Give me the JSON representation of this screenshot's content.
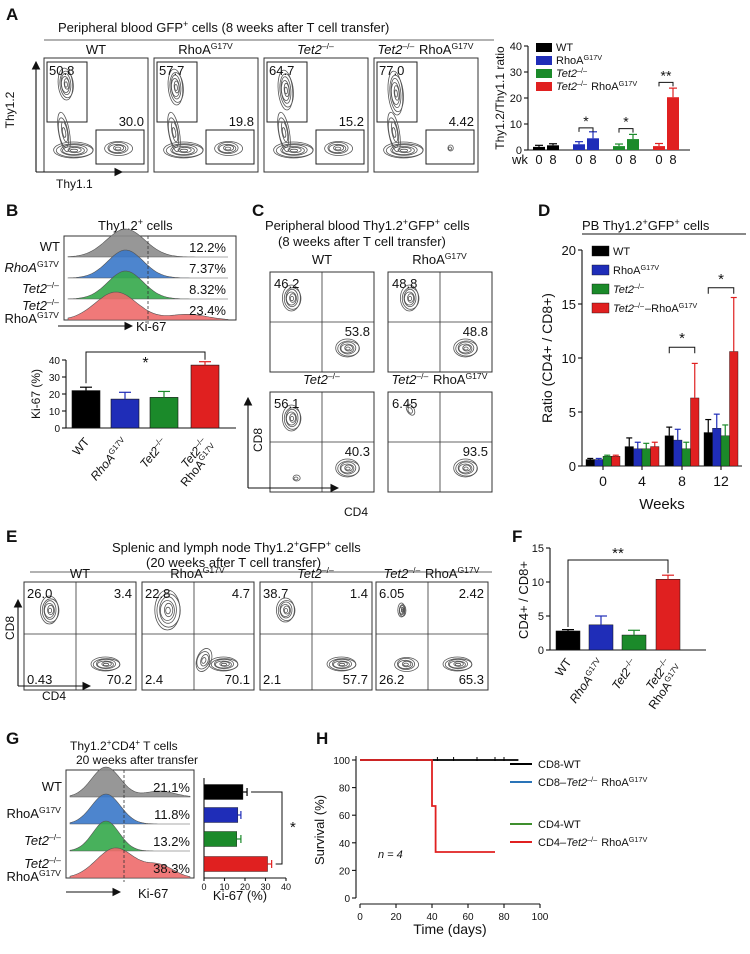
{
  "panelA": {
    "letter": "A",
    "title_pre": "Peripheral blood GFP",
    "title_sup": "+",
    "title_post": " cells (8 weeks after T cell transfer)",
    "groups": [
      {
        "pre": "WT",
        "sup": "",
        "post": "",
        "italic": false
      },
      {
        "pre": "RhoA",
        "sup": "G17V",
        "post": "",
        "italic": false
      },
      {
        "pre": "Tet2",
        "sup": "–/–",
        "post": "",
        "italic": true
      },
      {
        "pre": "Tet2",
        "sup": "–/–",
        "post": " RhoA",
        "sup2": "G17V",
        "italic": true
      }
    ],
    "flow_values": [
      [
        "50.8",
        "30.0"
      ],
      [
        "57.7",
        "19.8"
      ],
      [
        "64.7",
        "15.2"
      ],
      [
        "77.0",
        "4.42"
      ]
    ],
    "yaxis": "Thy1.2",
    "xaxis": "Thy1.1",
    "bar": {
      "ylabel": "Thy1.2/Thy1.1 ratio",
      "yticks": [
        "0",
        "10",
        "20",
        "30",
        "40"
      ],
      "ylim": [
        0,
        40
      ],
      "wk_label": "wk",
      "xticks": [
        "0",
        "8",
        "0",
        "8",
        "0",
        "8",
        "0",
        "8"
      ],
      "legend": [
        {
          "pre": "WT",
          "sup": "",
          "post": "",
          "italic": false,
          "color": "#000000"
        },
        {
          "pre": "RhoA",
          "sup": "G17V",
          "post": "",
          "italic": false,
          "color": "#1f2db8"
        },
        {
          "pre": "Tet2",
          "sup": "–/–",
          "post": "",
          "italic": true,
          "color": "#1b8a2a"
        },
        {
          "pre": "Tet2",
          "sup": "–/–",
          "post": " RhoA",
          "sup2": "G17V",
          "italic": true,
          "color": "#e02020"
        }
      ],
      "values": [
        1.2,
        1.8,
        2.2,
        4.5,
        1.5,
        4.2,
        1.5,
        20.3
      ],
      "errors": [
        0.6,
        0.6,
        1.0,
        2.5,
        0.8,
        1.8,
        1.0,
        3.5
      ],
      "stars": [
        "*",
        "*",
        "**"
      ]
    }
  },
  "panelB": {
    "letter": "B",
    "title_pre": "Thy1.2",
    "title_sup": "+",
    "title_post": " cells",
    "rows": [
      {
        "pre": "WT",
        "sup": "",
        "italic": false,
        "value": "12.2%",
        "color": "#8c8c8c"
      },
      {
        "pre": "RhoA",
        "sup": "G17V",
        "italic": true,
        "value": "7.37%",
        "color": "#3a78c9"
      },
      {
        "pre": "Tet2",
        "sup": "–/–",
        "italic": true,
        "value": "8.32%",
        "color": "#34a84a"
      },
      {
        "pre": "Tet2",
        "sup": "–/–",
        "line2": "RhoA",
        "sup2": "G17V",
        "italic": true,
        "value": "23.4%",
        "color": "#ee6a6a"
      }
    ],
    "xaxis": "Ki-67",
    "bar": {
      "ylabel": "Ki-67 (%)",
      "yticks": [
        "0",
        "10",
        "20",
        "30",
        "40"
      ],
      "ylim": [
        0,
        40
      ],
      "values": [
        22,
        17,
        18,
        37
      ],
      "errors": [
        2,
        4,
        3.5,
        2
      ],
      "colors": [
        "#000000",
        "#1f2db8",
        "#1b8a2a",
        "#e02020"
      ],
      "xlabels": [
        {
          "pre": "WT",
          "sup": "",
          "italic": false
        },
        {
          "pre": "RhoA",
          "sup": "G17V",
          "italic": true
        },
        {
          "pre": "Tet2",
          "sup": "–/–",
          "italic": true
        },
        {
          "pre": "Tet2",
          "sup": "–/–",
          "line2": "RhoA",
          "sup2": "G17V",
          "italic": true
        }
      ],
      "star": "*"
    }
  },
  "panelC": {
    "letter": "C",
    "title1_pre": "Peripheral blood Thy1.2",
    "title1_sup": "+",
    "title1_mid": "GFP",
    "title1_sup2": "+",
    "title1_post": " cells",
    "title2": "(8 weeks after T cell transfer)",
    "groups": [
      {
        "pre": "WT",
        "sup": "",
        "italic": false
      },
      {
        "pre": "RhoA",
        "sup": "G17V",
        "italic": false
      },
      {
        "pre": "Tet2",
        "sup": "–/–",
        "italic": true
      },
      {
        "pre": "Tet2",
        "sup": "–/–",
        "post": " RhoA",
        "sup2": "G17V",
        "italic": true
      }
    ],
    "values": [
      [
        "46.2",
        "53.8"
      ],
      [
        "48.8",
        "48.8"
      ],
      [
        "56.1",
        "40.3"
      ],
      [
        "6.45",
        "93.5"
      ]
    ],
    "yaxis": "CD8",
    "xaxis": "CD4"
  },
  "panelD": {
    "letter": "D",
    "title_pre": "PB Thy1.2",
    "title_sup": "+",
    "title_mid": "GFP",
    "title_sup2": "+",
    "title_post": " cells",
    "ylabel": "Ratio (CD4+ / CD8+)",
    "xlabel": "Weeks",
    "yticks": [
      "0",
      "5",
      "10",
      "15",
      "20"
    ],
    "ylim": [
      0,
      20
    ],
    "categories": [
      "0",
      "4",
      "8",
      "12"
    ],
    "legend": [
      {
        "pre": "WT",
        "sup": "",
        "post": "",
        "italic": false,
        "color": "#000000"
      },
      {
        "pre": "RhoA",
        "sup": "G17V",
        "post": "",
        "italic": false,
        "color": "#1f2db8"
      },
      {
        "pre": "Tet2",
        "sup": "–/–",
        "post": "",
        "italic": true,
        "color": "#1b8a2a"
      },
      {
        "pre": "Tet2",
        "sup": "–/–",
        "post": "–RhoA",
        "sup2": "G17V",
        "italic": true,
        "color": "#e02020"
      }
    ],
    "series": [
      {
        "values": [
          0.6,
          1.8,
          2.8,
          3.1
        ],
        "errors": [
          0.1,
          0.8,
          0.8,
          1.2
        ]
      },
      {
        "values": [
          0.6,
          1.6,
          2.4,
          3.5
        ],
        "errors": [
          0.1,
          0.6,
          1.0,
          1.3
        ]
      },
      {
        "values": [
          0.9,
          1.6,
          1.6,
          2.8
        ],
        "errors": [
          0.1,
          0.5,
          0.6,
          1.0
        ]
      },
      {
        "values": [
          0.9,
          1.8,
          6.3,
          10.6
        ],
        "errors": [
          0.1,
          0.4,
          3.2,
          5.0
        ]
      }
    ],
    "stars": [
      "*",
      "*"
    ]
  },
  "panelE": {
    "letter": "E",
    "title1_pre": "Splenic and lymph node Thy1.2",
    "title1_sup": "+",
    "title1_mid": "GFP",
    "title1_sup2": "+",
    "title1_post": " cells",
    "title2": "(20 weeks after T cell transfer)",
    "groups": [
      {
        "pre": "WT",
        "sup": "",
        "italic": false
      },
      {
        "pre": "RhoA",
        "sup": "G17V",
        "italic": false
      },
      {
        "pre": "Tet2",
        "sup": "–/–",
        "italic": true
      },
      {
        "pre": "Tet2",
        "sup": "–/–",
        "post": " RhoA",
        "sup2": "G17V",
        "italic": true
      }
    ],
    "values": [
      [
        "26.0",
        "3.4",
        "0.43",
        "70.2"
      ],
      [
        "22.8",
        "4.7",
        "2.4",
        "70.1"
      ],
      [
        "38.7",
        "1.4",
        "2.1",
        "57.7"
      ],
      [
        "6.05",
        "2.42",
        "26.2",
        "65.3"
      ]
    ],
    "yaxis": "CD8",
    "xaxis": "CD4"
  },
  "panelF": {
    "letter": "F",
    "ylabel": "CD4+ / CD8+",
    "yticks": [
      "0",
      "5",
      "10",
      "15"
    ],
    "ylim": [
      0,
      15
    ],
    "values": [
      2.8,
      3.7,
      2.2,
      10.4
    ],
    "errors": [
      0.2,
      1.3,
      0.7,
      0.6
    ],
    "colors": [
      "#000000",
      "#1f2db8",
      "#1b8a2a",
      "#e02020"
    ],
    "xlabels": [
      {
        "pre": "WT",
        "sup": "",
        "italic": false
      },
      {
        "pre": "RhoA",
        "sup": "G17V",
        "italic": true
      },
      {
        "pre": "Tet2",
        "sup": "–/–",
        "italic": true
      },
      {
        "pre": "Tet2",
        "sup": "–/–",
        "line2": "RhoA",
        "sup2": "G17V",
        "italic": true
      }
    ],
    "star": "**"
  },
  "panelG": {
    "letter": "G",
    "title1_pre": "Thy1.2",
    "title1_sup": "+",
    "title1_mid": "CD4",
    "title1_sup2": "+",
    "title1_post": " T cells",
    "title2": "20 weeks after transfer",
    "rows": [
      {
        "pre": "WT",
        "sup": "",
        "italic": false,
        "value": "21.1%",
        "color": "#8c8c8c"
      },
      {
        "pre": "RhoA",
        "sup": "G17V",
        "italic": false,
        "value": "11.8%",
        "color": "#3a78c9"
      },
      {
        "pre": "Tet2",
        "sup": "–/–",
        "italic": true,
        "value": "13.2%",
        "color": "#34a84a"
      },
      {
        "pre": "Tet2",
        "sup": "–/–",
        "line2": "RhoA",
        "sup2": "G17V",
        "italic": true,
        "value": "38.3%",
        "color": "#ee6a6a"
      }
    ],
    "xaxis": "Ki-67",
    "bar": {
      "xlabel": "Ki-67 (%)",
      "xticks": [
        "0",
        "10",
        "20",
        "30",
        "40"
      ],
      "xlim": [
        0,
        40
      ],
      "values": [
        19,
        16.5,
        16,
        31
      ],
      "errors": [
        2,
        1.5,
        2,
        2
      ],
      "colors": [
        "#000000",
        "#1f2db8",
        "#1b8a2a",
        "#e02020"
      ],
      "star": "*"
    }
  },
  "panelH": {
    "letter": "H",
    "ylabel": "Survival (%)",
    "xlabel": "Time (days)",
    "yticks": [
      "0",
      "20",
      "40",
      "60",
      "80",
      "100"
    ],
    "xticks": [
      "0",
      "20",
      "40",
      "60",
      "80",
      "100"
    ],
    "xlim": [
      0,
      100
    ],
    "ylim": [
      0,
      100
    ],
    "n_label": "n = 4",
    "legend": [
      {
        "pre": "CD8-WT",
        "sup": "",
        "post": "",
        "italic": false,
        "color": "#000000"
      },
      {
        "pre": "CD8–",
        "ital": "Tet2",
        "sup": "–/–",
        "post": " RhoA",
        "sup2": "G17V",
        "color": "#2a74b8"
      },
      {
        "pre": "CD4-WT",
        "sup": "",
        "post": "",
        "italic": false,
        "color": "#3f8f2e"
      },
      {
        "pre": "CD4–",
        "ital": "Tet2",
        "sup": "–/–",
        "post": " RhoA",
        "sup2": "G17V",
        "color": "#e02020"
      }
    ],
    "curves": [
      {
        "color": "#000000",
        "steps": [
          [
            0,
            100
          ],
          [
            88,
            100
          ]
        ]
      },
      {
        "color": "#e02020",
        "steps": [
          [
            0,
            100
          ],
          [
            40,
            100
          ],
          [
            40,
            66.7
          ],
          [
            42,
            66.7
          ],
          [
            42,
            33.3
          ],
          [
            75,
            33.3
          ]
        ]
      }
    ],
    "censors": [
      [
        43,
        100
      ],
      [
        52,
        100
      ],
      [
        65,
        100
      ],
      [
        75,
        100
      ],
      [
        80,
        100
      ]
    ]
  }
}
